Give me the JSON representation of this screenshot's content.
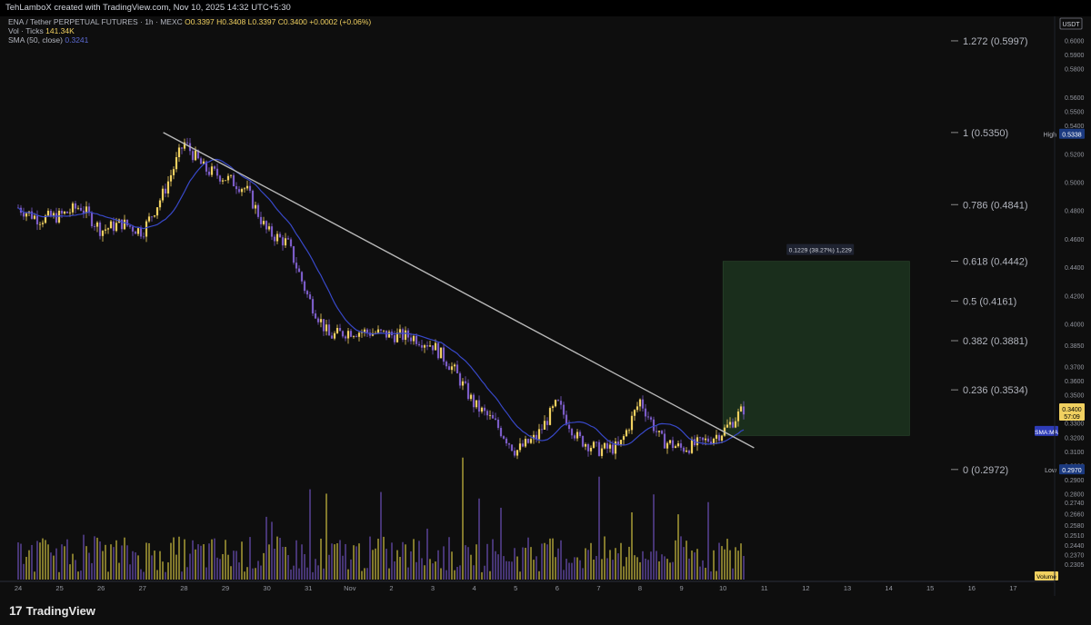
{
  "header": {
    "text": "TehLamboX created with TradingView.com, Nov 10, 2025 14:32 UTC+5:30"
  },
  "legend": {
    "symbol_prefix": "ENA / Tether PERPETUAL FUTURES · 1h · MEXC",
    "ohlc": "O0.3397 H0.3408 L0.3397 C0.3400 +0.0002 (+0.06%)",
    "vol_label": "Vol · Ticks",
    "vol_value": "141.34K",
    "sma_label": "SMA (50, close)",
    "sma_value": "0.3241"
  },
  "brand": {
    "name": "TradingView"
  },
  "colors": {
    "background": "#0e0e0e",
    "up_candle": "#f0d060",
    "down_candle": "#7b5cc7",
    "sma": "#3848c8",
    "trendline": "#b8b8b8",
    "fib": "#8a8a8a",
    "projection": "#1a2e1c",
    "volume_up": "#8f8530",
    "volume_down": "#4c3a80"
  },
  "chart_data": {
    "type": "candlestick",
    "currency": "USDT",
    "ylim": [
      0.224,
      0.608
    ],
    "y_ticks": [
      "0.6000",
      "0.5900",
      "0.5800",
      "0.5600",
      "0.5500",
      "0.5400",
      "0.5338",
      "0.5200",
      "0.5000",
      "0.4800",
      "0.4600",
      "0.4400",
      "0.4200",
      "0.4000",
      "0.3850",
      "0.3700",
      "0.3600",
      "0.3500",
      "0.3400",
      "0.3300",
      "0.3200",
      "0.3100",
      "0.3000",
      "0.2970",
      "0.2900",
      "0.2800",
      "0.2740",
      "0.2660",
      "0.2580",
      "0.2510",
      "0.2440",
      "0.2370",
      "0.2305"
    ],
    "x_ticks": [
      "24",
      "25",
      "26",
      "27",
      "28",
      "29",
      "30",
      "31",
      "Nov",
      "2",
      "3",
      "4",
      "5",
      "6",
      "7",
      "8",
      "9",
      "10",
      "11",
      "12",
      "13",
      "14",
      "15",
      "16",
      "17"
    ],
    "x_dates": [
      "2025-10-24",
      "2025-10-25",
      "2025-10-26",
      "2025-10-27",
      "2025-10-28",
      "2025-10-29",
      "2025-10-30",
      "2025-10-31",
      "2025-11-01",
      "2025-11-02",
      "2025-11-03",
      "2025-11-04",
      "2025-11-05",
      "2025-11-06",
      "2025-11-07",
      "2025-11-08",
      "2025-11-09",
      "2025-11-10",
      "2025-11-11",
      "2025-11-12",
      "2025-11-13",
      "2025-11-14",
      "2025-11-15",
      "2025-11-16",
      "2025-11-17"
    ],
    "price_path": {
      "x": [
        "2025-10-24",
        "2025-10-24T12:00",
        "2025-10-25",
        "2025-10-25T12:00",
        "2025-10-26",
        "2025-10-26T12:00",
        "2025-10-27",
        "2025-10-27T12:00",
        "2025-10-28",
        "2025-10-28T12:00",
        "2025-10-29",
        "2025-10-29T12:00",
        "2025-10-30",
        "2025-10-30T12:00",
        "2025-10-31",
        "2025-10-31T12:00",
        "2025-11-01",
        "2025-11-01T12:00",
        "2025-11-02",
        "2025-11-02T12:00",
        "2025-11-03",
        "2025-11-03T12:00",
        "2025-11-04",
        "2025-11-04T12:00",
        "2025-11-05",
        "2025-11-05T12:00",
        "2025-11-06",
        "2025-11-06T12:00",
        "2025-11-07",
        "2025-11-07T12:00",
        "2025-11-08",
        "2025-11-08T12:00",
        "2025-11-09",
        "2025-11-09T12:00",
        "2025-11-10",
        "2025-11-10T12:00"
      ],
      "close": [
        0.482,
        0.474,
        0.476,
        0.483,
        0.466,
        0.471,
        0.465,
        0.492,
        0.528,
        0.509,
        0.503,
        0.495,
        0.465,
        0.457,
        0.418,
        0.391,
        0.395,
        0.394,
        0.392,
        0.391,
        0.385,
        0.368,
        0.343,
        0.33,
        0.31,
        0.32,
        0.344,
        0.319,
        0.311,
        0.313,
        0.346,
        0.318,
        0.312,
        0.316,
        0.324,
        0.34
      ]
    },
    "sma": {
      "name": "SMA (50, close)",
      "last": 0.3241
    },
    "high": {
      "label": "High",
      "value": "0.5338"
    },
    "low": {
      "label": "Low",
      "value": "0.2970"
    },
    "current": {
      "value": "0.3400",
      "countdown": "57:09"
    },
    "sma_tag": "SMA:MA",
    "trendline": {
      "start": [
        "2025-10-27T12:00",
        0.535
      ],
      "end": [
        "2025-11-10T18:00",
        0.3125
      ]
    },
    "fib_levels": [
      {
        "label": "1.272 (0.5997)",
        "value": 0.5997
      },
      {
        "label": "1 (0.5350)",
        "value": 0.535
      },
      {
        "label": "0.786 (0.4841)",
        "value": 0.4841
      },
      {
        "label": "0.618 (0.4442)",
        "value": 0.4442
      },
      {
        "label": "0.5 (0.4161)",
        "value": 0.4161
      },
      {
        "label": "0.382 (0.3881)",
        "value": 0.3881
      },
      {
        "label": "0.236 (0.3534)",
        "value": 0.3534
      },
      {
        "label": "0 (0.2972)",
        "value": 0.2972
      }
    ],
    "projection": {
      "from": [
        "2025-11-10",
        0.3212
      ],
      "to": [
        "2025-11-14T12:00",
        0.4441
      ],
      "label": "0.1229 (38.27%) 1,229"
    },
    "volume": {
      "label": "Volume",
      "ylim": [
        0,
        1
      ]
    }
  }
}
